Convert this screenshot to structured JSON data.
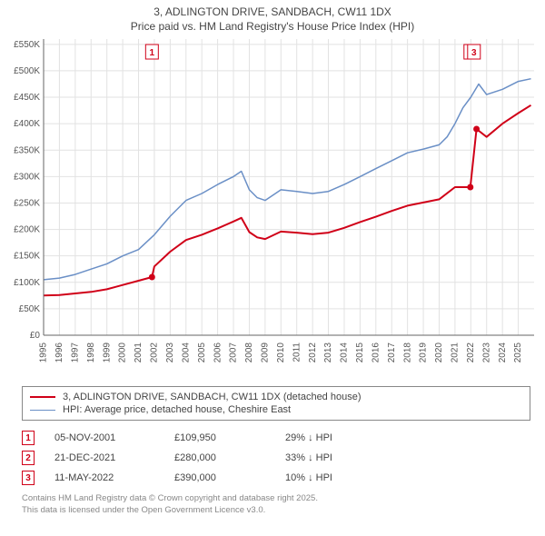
{
  "title_line1": "3, ADLINGTON DRIVE, SANDBACH, CW11 1DX",
  "title_line2": "Price paid vs. HM Land Registry's House Price Index (HPI)",
  "chart": {
    "type": "line",
    "background_color": "#ffffff",
    "grid_color": "#e2e2e2",
    "axis_color": "#666666",
    "axis_label_fontsize": 10,
    "axis_label_color": "#555555",
    "xlim": [
      1995,
      2026
    ],
    "x_ticks": [
      1995,
      1996,
      1997,
      1998,
      1999,
      2000,
      2001,
      2002,
      2003,
      2004,
      2005,
      2006,
      2007,
      2008,
      2009,
      2010,
      2011,
      2012,
      2013,
      2014,
      2015,
      2016,
      2017,
      2018,
      2019,
      2020,
      2021,
      2022,
      2023,
      2024,
      2025
    ],
    "x_tick_labels": [
      "1995",
      "1996",
      "1997",
      "1998",
      "1999",
      "2000",
      "2001",
      "2002",
      "2003",
      "2004",
      "2005",
      "2006",
      "2007",
      "2008",
      "2009",
      "2010",
      "2011",
      "2012",
      "2013",
      "2014",
      "2015",
      "2016",
      "2017",
      "2018",
      "2019",
      "2020",
      "2021",
      "2022",
      "2023",
      "2024",
      "2025"
    ],
    "ylim": [
      0,
      560000
    ],
    "y_ticks": [
      0,
      50000,
      100000,
      150000,
      200000,
      250000,
      300000,
      350000,
      400000,
      450000,
      500000,
      550000
    ],
    "y_tick_labels": [
      "£0",
      "£50K",
      "£100K",
      "£150K",
      "£200K",
      "£250K",
      "£300K",
      "£350K",
      "£400K",
      "£450K",
      "£500K",
      "£550K"
    ],
    "series": [
      {
        "name": "hpi",
        "label": "HPI: Average price, detached house, Cheshire East",
        "color": "#6a8fc6",
        "line_width": 1.5,
        "x": [
          1995,
          1996,
          1997,
          1998,
          1999,
          2000,
          2001,
          2002,
          2003,
          2004,
          2005,
          2006,
          2007,
          2007.5,
          2008,
          2008.5,
          2009,
          2010,
          2011,
          2012,
          2013,
          2014,
          2015,
          2016,
          2017,
          2018,
          2019,
          2020,
          2020.5,
          2021,
          2021.5,
          2022,
          2022.5,
          2023,
          2024,
          2025,
          2025.8
        ],
        "y": [
          105000,
          108000,
          115000,
          125000,
          135000,
          150000,
          162000,
          190000,
          225000,
          255000,
          268000,
          285000,
          300000,
          310000,
          275000,
          260000,
          255000,
          275000,
          272000,
          268000,
          272000,
          285000,
          300000,
          315000,
          330000,
          345000,
          352000,
          360000,
          375000,
          400000,
          430000,
          450000,
          475000,
          455000,
          465000,
          480000,
          485000
        ]
      },
      {
        "name": "price_paid",
        "label": "3, ADLINGTON DRIVE, SANDBACH, CW11 1DX (detached house)",
        "color": "#d00018",
        "line_width": 2,
        "x": [
          1995,
          1996,
          1997,
          1998,
          1999,
          2000,
          2001,
          2001.85,
          2002,
          2003,
          2004,
          2005,
          2006,
          2007,
          2007.5,
          2008,
          2008.5,
          2009,
          2010,
          2011,
          2012,
          2013,
          2014,
          2015,
          2016,
          2017,
          2018,
          2019,
          2020,
          2021,
          2021.97,
          2022.36,
          2023,
          2024,
          2025,
          2025.8
        ],
        "y": [
          75000,
          76000,
          79000,
          82000,
          87000,
          95000,
          103000,
          109950,
          130000,
          158000,
          180000,
          190000,
          202000,
          215000,
          222000,
          195000,
          185000,
          182000,
          196000,
          194000,
          191000,
          194000,
          203000,
          214000,
          224000,
          235000,
          245000,
          251000,
          257000,
          280000,
          280000,
          390000,
          375000,
          400000,
          420000,
          435000
        ]
      }
    ],
    "markers": [
      {
        "n": "1",
        "x": 2001.85,
        "y": 109950,
        "color": "#d00018",
        "border_color": "#d00018",
        "flag_color": "#d00018",
        "label_y_top": 10
      },
      {
        "n": "2",
        "x": 2021.97,
        "y": 280000,
        "color": "#d00018",
        "border_color": "#d00018",
        "flag_color": "#d00018",
        "label_y_top": 10,
        "overlap": true
      },
      {
        "n": "3",
        "x": 2022.36,
        "y": 390000,
        "color": "#d00018",
        "border_color": "#d00018",
        "flag_color": "#d00018",
        "label_y_top": 10
      }
    ]
  },
  "legend": {
    "rows": [
      {
        "swatch_color": "#d00018",
        "swatch_width": 2,
        "label": "3, ADLINGTON DRIVE, SANDBACH, CW11 1DX (detached house)"
      },
      {
        "swatch_color": "#6a8fc6",
        "swatch_width": 1.5,
        "label": "HPI: Average price, detached house, Cheshire East"
      }
    ]
  },
  "sales": {
    "marker_border_color": "#d00018",
    "rows": [
      {
        "n": "1",
        "date": "05-NOV-2001",
        "price": "£109,950",
        "diff": "29% ↓ HPI"
      },
      {
        "n": "2",
        "date": "21-DEC-2021",
        "price": "£280,000",
        "diff": "33% ↓ HPI"
      },
      {
        "n": "3",
        "date": "11-MAY-2022",
        "price": "£390,000",
        "diff": "10% ↓ HPI"
      }
    ]
  },
  "footnote_line1": "Contains HM Land Registry data © Crown copyright and database right 2025.",
  "footnote_line2": "This data is licensed under the Open Government Licence v3.0."
}
